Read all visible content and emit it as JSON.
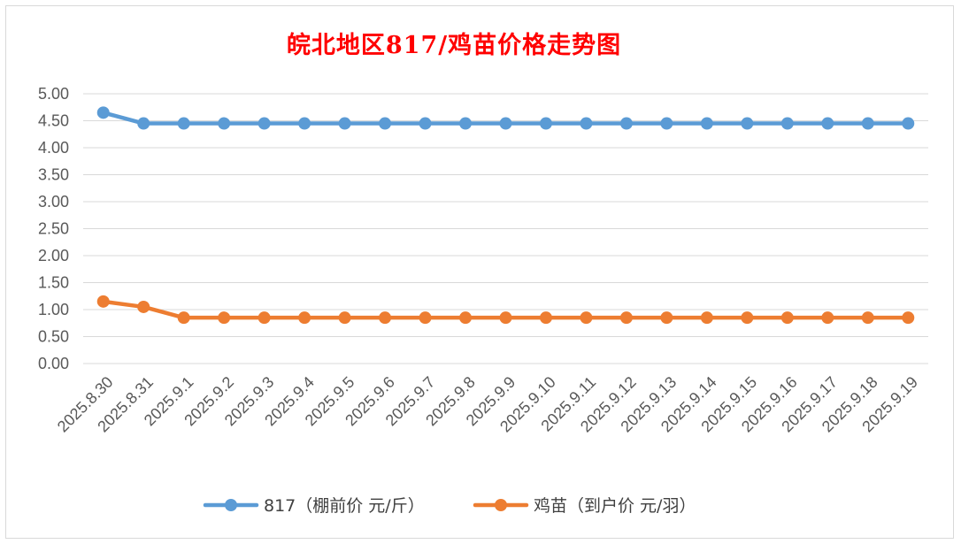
{
  "chart_data": {
    "type": "line",
    "title": "皖北地区817/鸡苗价格走势图",
    "xlabel": "",
    "ylabel": "",
    "ylim": [
      0,
      5
    ],
    "ytick_step": 0.5,
    "yticks": [
      "0.00",
      "0.50",
      "1.00",
      "1.50",
      "2.00",
      "2.50",
      "3.00",
      "3.50",
      "4.00",
      "4.50",
      "5.00"
    ],
    "grid": true,
    "legend_position": "bottom",
    "categories": [
      "2025.8.30",
      "2025.8.31",
      "2025.9.1",
      "2025.9.2",
      "2025.9.3",
      "2025.9.4",
      "2025.9.5",
      "2025.9.6",
      "2025.9.7",
      "2025.9.8",
      "2025.9.9",
      "2025.9.10",
      "2025.9.11",
      "2025.9.12",
      "2025.9.13",
      "2025.9.14",
      "2025.9.15",
      "2025.9.16",
      "2025.9.17",
      "2025.9.18",
      "2025.9.19"
    ],
    "series": [
      {
        "name": "817（棚前价 元/斤）",
        "color": "#5b9bd5",
        "values": [
          4.65,
          4.45,
          4.45,
          4.45,
          4.45,
          4.45,
          4.45,
          4.45,
          4.45,
          4.45,
          4.45,
          4.45,
          4.45,
          4.45,
          4.45,
          4.45,
          4.45,
          4.45,
          4.45,
          4.45,
          4.45
        ]
      },
      {
        "name": "鸡苗（到户价 元/羽）",
        "color": "#ed7d31",
        "values": [
          1.15,
          1.05,
          0.85,
          0.85,
          0.85,
          0.85,
          0.85,
          0.85,
          0.85,
          0.85,
          0.85,
          0.85,
          0.85,
          0.85,
          0.85,
          0.85,
          0.85,
          0.85,
          0.85,
          0.85,
          0.85
        ]
      }
    ]
  }
}
